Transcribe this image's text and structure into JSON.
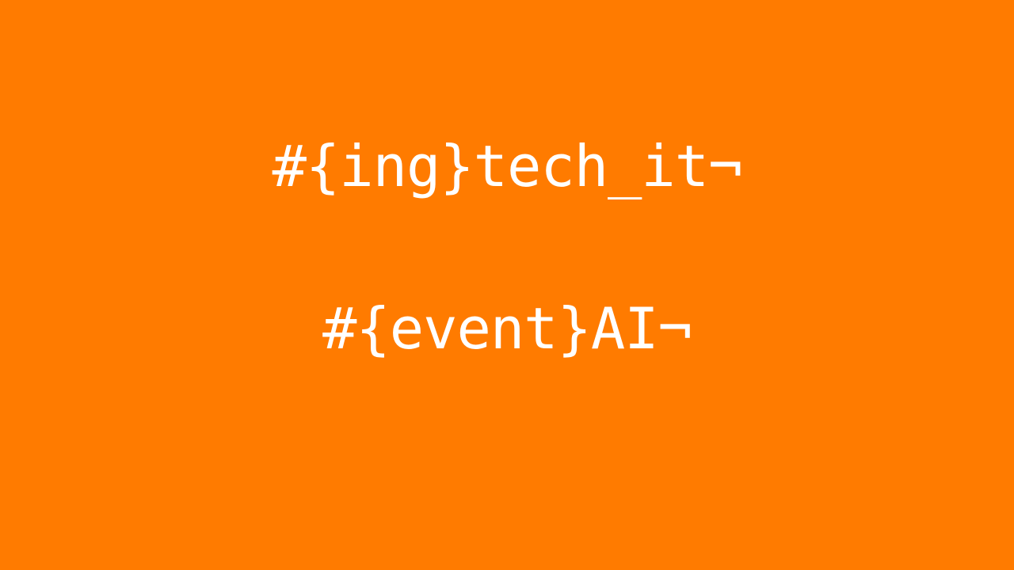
{
  "slide": {
    "background_color": "#ff7b00",
    "text_color": "#ffffff",
    "lines": [
      "#{ing}tech_it¬",
      "#{event}AI¬"
    ]
  }
}
